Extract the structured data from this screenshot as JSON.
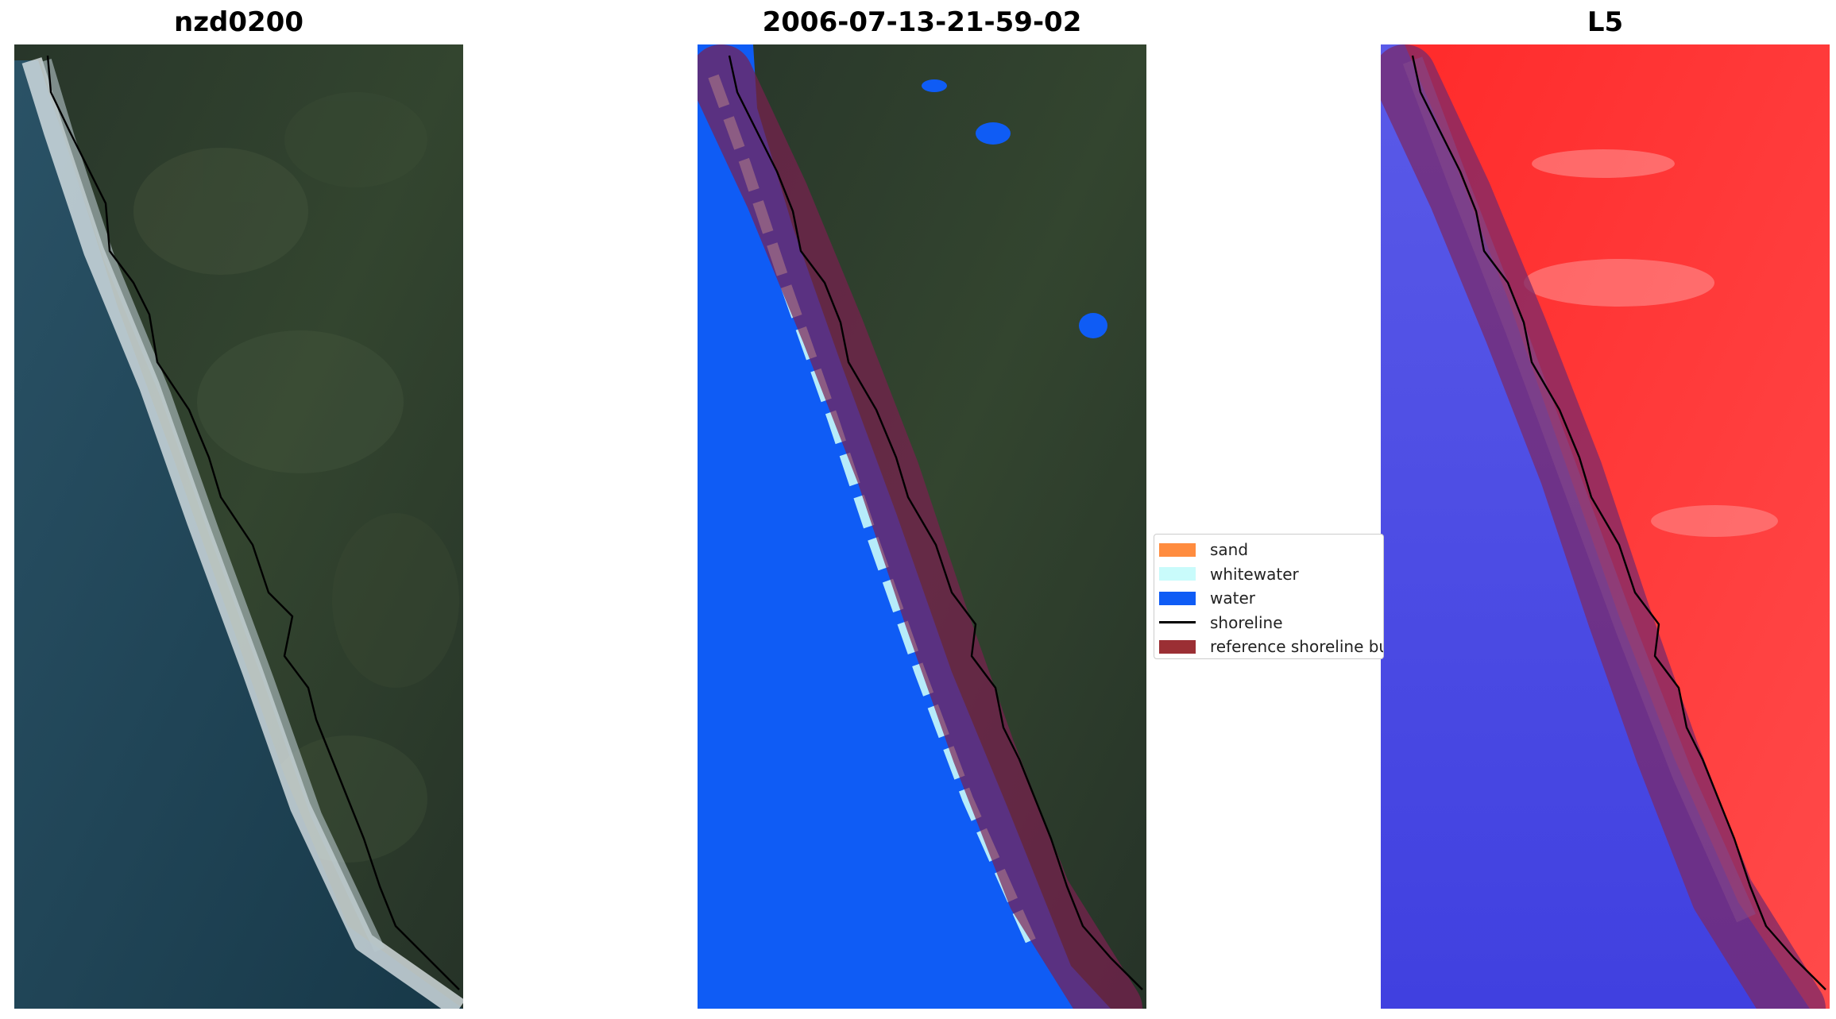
{
  "panels": [
    {
      "title": "nzd0200"
    },
    {
      "title": "2006-07-13-21-59-02"
    },
    {
      "title": "L5"
    }
  ],
  "legend": {
    "items": [
      {
        "label": "sand",
        "color": "#ff8c3f",
        "kind": "patch"
      },
      {
        "label": "whitewater",
        "color": "#c9fbfb",
        "kind": "patch"
      },
      {
        "label": "water",
        "color": "#0f5cf5",
        "kind": "patch"
      },
      {
        "label": "shoreline",
        "color": "#000000",
        "kind": "line"
      },
      {
        "label": "reference shoreline buffer",
        "color": "#9b2f34",
        "kind": "patch"
      }
    ]
  },
  "colors": {
    "land": "#2a3a2c",
    "ocean": "#1e4157",
    "water_class": "#0f5cf5",
    "whitewater": "#c9fbfb",
    "buffer": "#7a2050",
    "index_positive": "#ff1a1a",
    "index_negative": "#3a3ae6"
  }
}
